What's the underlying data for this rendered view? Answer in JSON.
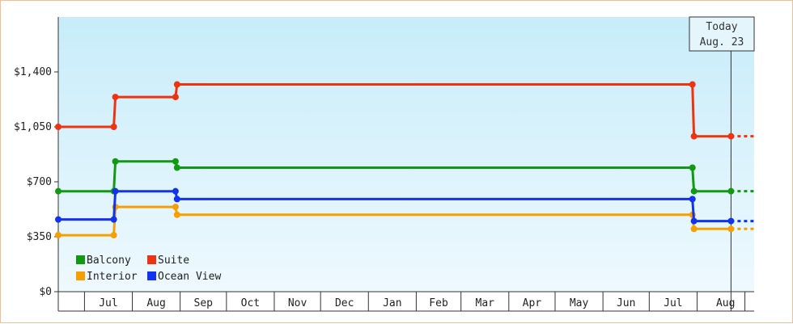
{
  "chart_data": {
    "type": "line",
    "step": true,
    "title": "",
    "xlabel": "",
    "ylabel": "",
    "ylim": [
      0,
      1750
    ],
    "y_ticks": [
      {
        "value": 0,
        "label": "$0"
      },
      {
        "value": 350,
        "label": "$350"
      },
      {
        "value": 700,
        "label": "$700"
      },
      {
        "value": 1050,
        "label": "$1,050"
      },
      {
        "value": 1400,
        "label": "$1,400"
      }
    ],
    "x_range": [
      "2023-06-14",
      "2024-09-07"
    ],
    "x_month_labels": [
      {
        "label": "Jul",
        "start": "2023-07-01"
      },
      {
        "label": "Aug",
        "start": "2023-08-01"
      },
      {
        "label": "Sep",
        "start": "2023-09-01"
      },
      {
        "label": "Oct",
        "start": "2023-10-01"
      },
      {
        "label": "Nov",
        "start": "2023-11-01"
      },
      {
        "label": "Dec",
        "start": "2023-12-01"
      },
      {
        "label": "Jan",
        "start": "2024-01-01"
      },
      {
        "label": "Feb",
        "start": "2024-02-01"
      },
      {
        "label": "Mar",
        "start": "2024-03-01"
      },
      {
        "label": "Apr",
        "start": "2024-04-01"
      },
      {
        "label": "May",
        "start": "2024-05-01"
      },
      {
        "label": "Jun",
        "start": "2024-06-01"
      },
      {
        "label": "Jul",
        "start": "2024-07-01"
      },
      {
        "label": "Aug",
        "start": "2024-08-01"
      }
    ],
    "today": {
      "line1": "Today",
      "line2": "Aug. 23",
      "date": "2024-08-23"
    },
    "series": [
      {
        "name": "Balcony",
        "color": "#119911",
        "points": [
          {
            "date": "2023-06-14",
            "value": 640
          },
          {
            "date": "2023-07-20",
            "value": 640
          },
          {
            "date": "2023-07-21",
            "value": 830
          },
          {
            "date": "2023-08-29",
            "value": 830
          },
          {
            "date": "2023-08-30",
            "value": 790
          },
          {
            "date": "2024-07-29",
            "value": 790
          },
          {
            "date": "2024-07-30",
            "value": 640
          },
          {
            "date": "2024-08-23",
            "value": 640
          }
        ],
        "projection_end": {
          "date": "2024-09-07",
          "value": 640
        }
      },
      {
        "name": "Suite",
        "color": "#ee3311",
        "points": [
          {
            "date": "2023-06-14",
            "value": 1050
          },
          {
            "date": "2023-07-20",
            "value": 1050
          },
          {
            "date": "2023-07-21",
            "value": 1240
          },
          {
            "date": "2023-08-29",
            "value": 1240
          },
          {
            "date": "2023-08-30",
            "value": 1320
          },
          {
            "date": "2024-07-29",
            "value": 1320
          },
          {
            "date": "2024-07-30",
            "value": 990
          },
          {
            "date": "2024-08-23",
            "value": 990
          }
        ],
        "projection_end": {
          "date": "2024-09-07",
          "value": 990
        }
      },
      {
        "name": "Interior",
        "color": "#f5a000",
        "points": [
          {
            "date": "2023-06-14",
            "value": 360
          },
          {
            "date": "2023-07-20",
            "value": 360
          },
          {
            "date": "2023-07-21",
            "value": 540
          },
          {
            "date": "2023-08-29",
            "value": 540
          },
          {
            "date": "2023-08-30",
            "value": 490
          },
          {
            "date": "2024-07-29",
            "value": 490
          },
          {
            "date": "2024-07-30",
            "value": 400
          },
          {
            "date": "2024-08-23",
            "value": 400
          }
        ],
        "projection_end": {
          "date": "2024-09-07",
          "value": 400
        }
      },
      {
        "name": "Ocean View",
        "color": "#1133ee",
        "points": [
          {
            "date": "2023-06-14",
            "value": 460
          },
          {
            "date": "2023-07-20",
            "value": 460
          },
          {
            "date": "2023-07-21",
            "value": 640
          },
          {
            "date": "2023-08-29",
            "value": 640
          },
          {
            "date": "2023-08-30",
            "value": 590
          },
          {
            "date": "2024-07-29",
            "value": 590
          },
          {
            "date": "2024-07-30",
            "value": 450
          },
          {
            "date": "2024-08-23",
            "value": 450
          }
        ],
        "projection_end": {
          "date": "2024-09-07",
          "value": 450
        }
      }
    ],
    "legend": {
      "position": "bottom-left",
      "items": [
        {
          "label": "Balcony",
          "color": "#119911"
        },
        {
          "label": "Suite",
          "color": "#ee3311"
        },
        {
          "label": "Interior",
          "color": "#f5a000"
        },
        {
          "label": "Ocean View",
          "color": "#1133ee"
        }
      ]
    }
  }
}
